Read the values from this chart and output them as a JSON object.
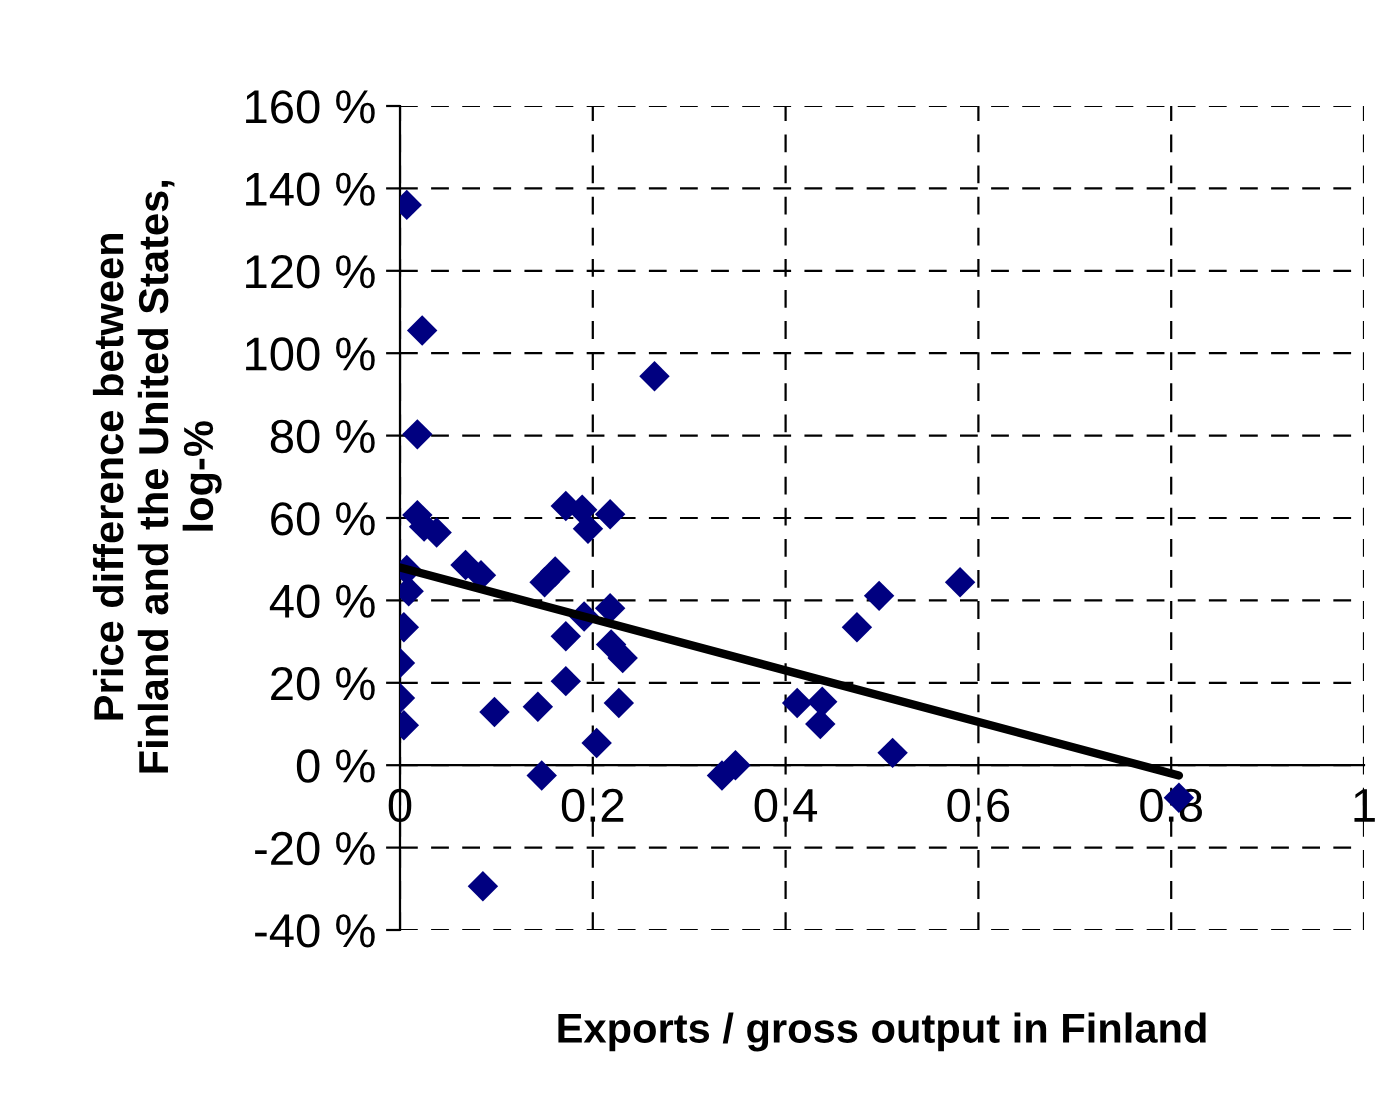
{
  "chart_data": {
    "type": "scatter",
    "xlabel": "Exports / gross output in Finland",
    "ylabel": "Price difference between\nFinland and the United States,\nlog-%",
    "xlim": [
      0,
      1
    ],
    "xticks": [
      0,
      0.2,
      0.4,
      0.6,
      0.8,
      1
    ],
    "ylim": [
      -40,
      160
    ],
    "yticks": [
      {
        "value": -40,
        "label": "-40 %"
      },
      {
        "value": -20,
        "label": "-20 %"
      },
      {
        "value": 0,
        "label": "0 %"
      },
      {
        "value": 20,
        "label": "20 %"
      },
      {
        "value": 40,
        "label": "40 %"
      },
      {
        "value": 60,
        "label": "60 %"
      },
      {
        "value": 80,
        "label": "80 %"
      },
      {
        "value": 100,
        "label": "100 %"
      },
      {
        "value": 120,
        "label": "120 %"
      },
      {
        "value": 140,
        "label": "140 %"
      },
      {
        "value": 160,
        "label": "160 %"
      }
    ],
    "grid": true,
    "marker": "diamond",
    "series": [
      {
        "type": "scatter",
        "color": "#000080",
        "x": [
          0.007,
          0.023,
          0.264,
          0.018,
          0.018,
          0.025,
          0.038,
          0.172,
          0.189,
          0.195,
          0.218,
          0.068,
          0.084,
          0.007,
          0.009,
          0.161,
          0.15,
          0.581,
          0.497,
          0.191,
          0.218,
          0.474,
          0.004,
          0.172,
          0.219,
          0.231,
          0.0,
          0.172,
          0.0,
          0.143,
          0.098,
          0.227,
          0.412,
          0.438,
          0.436,
          0.004,
          0.204,
          0.511,
          0.147,
          0.334,
          0.348,
          0.808,
          0.086
        ],
        "values": [
          136,
          105.5,
          94.4,
          80.3,
          60.7,
          57.9,
          56.5,
          62.9,
          62,
          57.4,
          60.9,
          48.6,
          46.1,
          47.4,
          42.2,
          47,
          44.4,
          44.4,
          41.1,
          36.1,
          38.1,
          33.5,
          33.5,
          31.3,
          29.3,
          26,
          24.8,
          20.4,
          16.3,
          14.2,
          12.9,
          15.1,
          15.1,
          15.4,
          10,
          9.7,
          5.4,
          3,
          -2.5,
          -2.5,
          0,
          -7.9,
          -29.4
        ]
      },
      {
        "type": "line",
        "color": "#000000",
        "marker": "none",
        "x": [
          0,
          0.808
        ],
        "values": [
          48,
          -2.5
        ]
      }
    ]
  }
}
